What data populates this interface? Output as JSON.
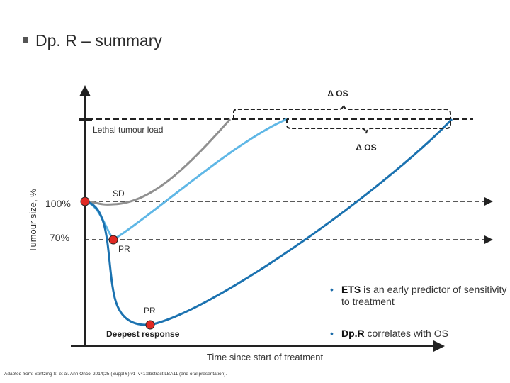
{
  "title": "Dp. R – summary",
  "diagram": {
    "y_axis_label": "Tumour size, %",
    "x_axis_label": "Time since start of treatment",
    "lethal_label": "Lethal tumour load",
    "delta_os_label": "Δ OS",
    "levels": [
      "100%",
      "70%"
    ],
    "sd_label": "SD",
    "pr_label": "PR",
    "deepest_label": "Deepest response",
    "colors": {
      "grey": "#909090",
      "light_blue": "#5fb7e6",
      "dark_blue": "#1b72b0",
      "marker": "#e02a24"
    }
  },
  "bullets": [
    {
      "strong": "ETS",
      "rest": " is an early predictor of sensitivity to treatment"
    },
    {
      "strong": "Dp.R",
      "rest": " correlates with OS"
    }
  ],
  "citation": "Adapted from: Stintzing S, et al. Ann Oncol 2014;25 (Suppl 6):v1–v41:abstract LBA11 (and oral presentation)."
}
